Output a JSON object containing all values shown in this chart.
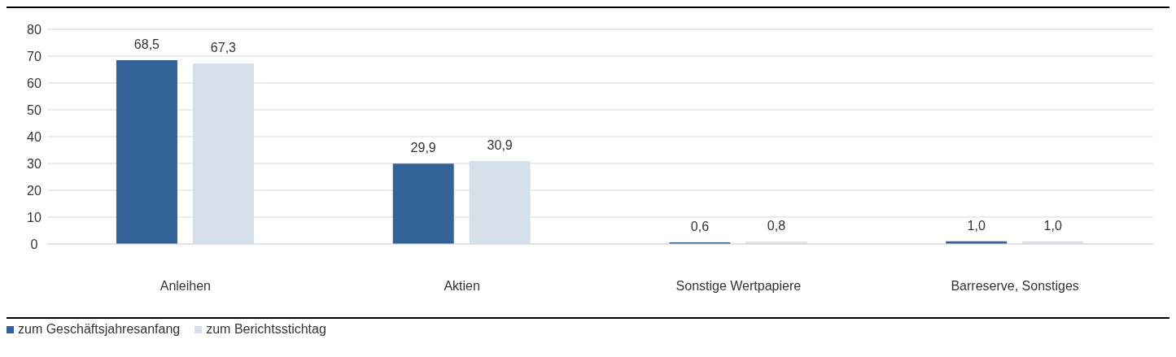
{
  "chart_data": {
    "type": "bar",
    "categories": [
      "Anleihen",
      "Aktien",
      "Sonstige Wertpapiere",
      "Barreserve, Sonstiges"
    ],
    "series": [
      {
        "name": "zum Geschäftsjahresanfang",
        "color": "#336298",
        "values": [
          68.5,
          29.9,
          0.6,
          1.0
        ],
        "value_labels": [
          "68,5",
          "29,9",
          "0,6",
          "1,0"
        ]
      },
      {
        "name": "zum Berichtsstichtag",
        "color": "#d6e0eb",
        "values": [
          67.3,
          30.9,
          0.8,
          1.0
        ],
        "value_labels": [
          "67,3",
          "30,9",
          "0,8",
          "1,0"
        ]
      }
    ],
    "ylim": [
      0,
      80
    ],
    "yticks": [
      0,
      10,
      20,
      30,
      40,
      50,
      60,
      70,
      80
    ],
    "grid": "y",
    "legend": "bottom left"
  }
}
